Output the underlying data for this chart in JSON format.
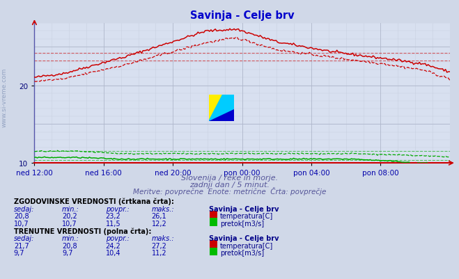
{
  "title": "Savinja - Celje brv",
  "title_color": "#0000cc",
  "bg_color": "#d0d8e8",
  "plot_bg_color": "#d8e0f0",
  "grid_color_major": "#b0b8cc",
  "grid_color_minor": "#c8d0e0",
  "subtitle1": "Slovenija / reke in morje.",
  "subtitle2": "zadnji dan / 5 minut.",
  "subtitle3": "Meritve: povprečne  Enote: metrične  Črta: povprečje",
  "xlabel_color": "#0000aa",
  "xtick_labels": [
    "ned 12:00",
    "ned 16:00",
    "ned 20:00",
    "pon 00:00",
    "pon 04:00",
    "pon 08:00"
  ],
  "ylim": [
    10,
    28
  ],
  "yticks": [
    10,
    20
  ],
  "temp_color": "#cc0000",
  "flow_color": "#00aa00",
  "hline_temp_hist_avg": 23.2,
  "hline_temp_curr_avg": 24.2,
  "hline_flow_hist_avg": 11.5,
  "hline_flow_curr_avg": 10.4,
  "watermark_text": "www.si-vreme.com",
  "bottom_text_color": "#555599",
  "red_square_color": "#cc0000",
  "green_square_color": "#00bb00",
  "n_points": 288,
  "table_header_color": "#000088",
  "table_val_color": "#0000aa"
}
